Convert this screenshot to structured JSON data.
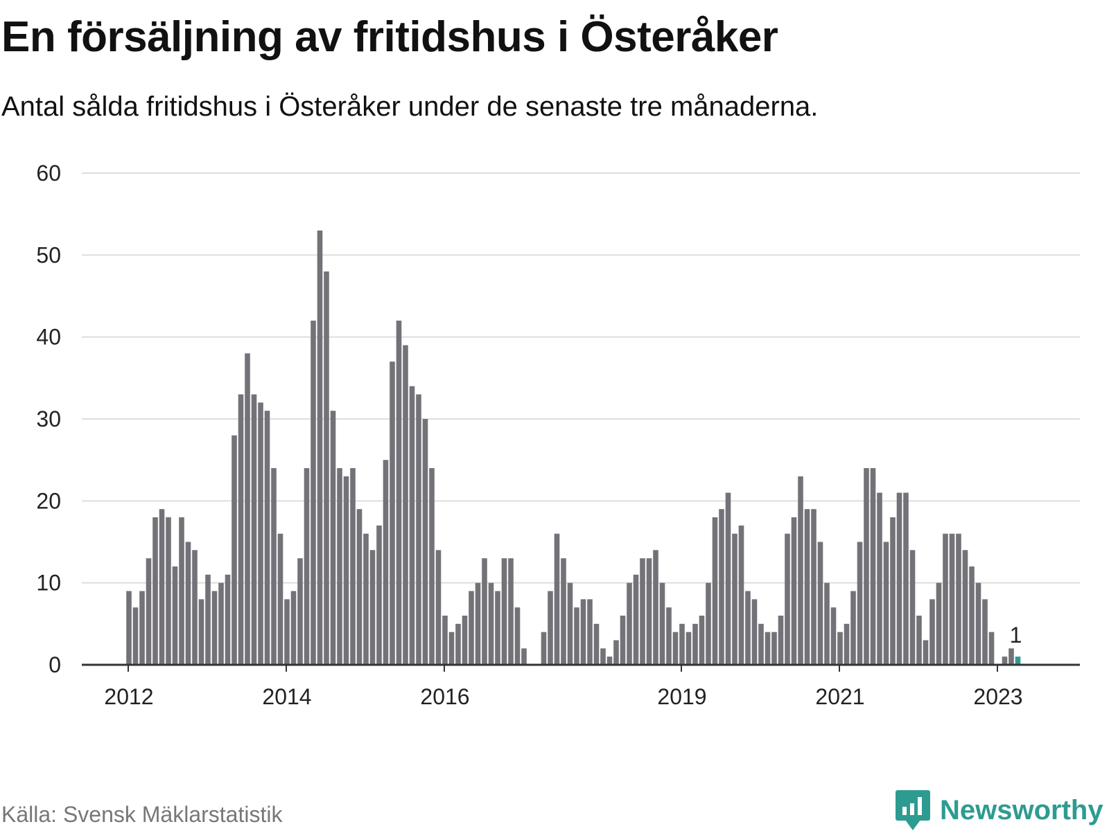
{
  "title": "En försäljning av fritidshus i Österåker",
  "subtitle": "Antal sålda fritidshus i Österåker under de senaste tre månaderna.",
  "source": "Källa: Svensk Mäklarstatistik",
  "brand": "Newsworthy",
  "colors": {
    "bar": "#737278",
    "highlight": "#2e9b91",
    "grid": "#dddddd",
    "axis": "#333333",
    "brand": "#2e9b91"
  },
  "chart_data": {
    "type": "bar",
    "title": "En försäljning av fritidshus i Österåker",
    "xlabel": "",
    "ylabel": "",
    "ylim": [
      0,
      60
    ],
    "y_ticks": [
      0,
      10,
      20,
      30,
      40,
      50,
      60
    ],
    "grid": true,
    "start": {
      "year": 2012,
      "month": 1
    },
    "x_tick_labels": [
      {
        "label": "2012",
        "index": 0
      },
      {
        "label": "2014",
        "index": 24
      },
      {
        "label": "2016",
        "index": 48
      },
      {
        "label": "2019",
        "index": 84
      },
      {
        "label": "2021",
        "index": 108
      },
      {
        "label": "2023",
        "index": 132
      }
    ],
    "values": [
      9,
      7,
      9,
      13,
      18,
      19,
      18,
      12,
      18,
      15,
      14,
      8,
      11,
      9,
      10,
      11,
      28,
      33,
      38,
      33,
      32,
      31,
      24,
      16,
      8,
      9,
      13,
      24,
      42,
      53,
      48,
      31,
      24,
      23,
      24,
      19,
      16,
      14,
      17,
      25,
      37,
      42,
      39,
      34,
      33,
      30,
      24,
      14,
      6,
      4,
      5,
      6,
      9,
      10,
      13,
      10,
      9,
      13,
      13,
      7,
      2,
      0,
      0,
      4,
      9,
      16,
      13,
      10,
      7,
      8,
      8,
      5,
      2,
      1,
      3,
      6,
      10,
      11,
      13,
      13,
      14,
      10,
      7,
      4,
      5,
      4,
      5,
      6,
      10,
      18,
      19,
      21,
      16,
      17,
      9,
      8,
      5,
      4,
      4,
      6,
      16,
      18,
      23,
      19,
      19,
      15,
      10,
      7,
      4,
      5,
      9,
      15,
      24,
      24,
      21,
      15,
      18,
      21,
      21,
      14,
      6,
      3,
      8,
      10,
      16,
      16,
      16,
      14,
      12,
      10,
      8,
      4,
      0,
      1,
      2,
      1
    ],
    "highlight_index": 135,
    "highlight_label": "1"
  }
}
